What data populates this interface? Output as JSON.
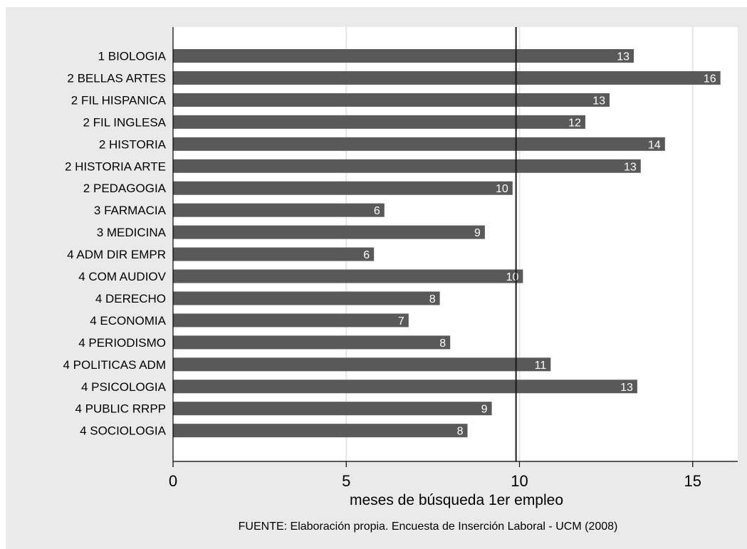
{
  "chart_data": {
    "type": "bar",
    "orientation": "horizontal",
    "categories": [
      "1 BIOLOGIA",
      "2 BELLAS ARTES",
      "2 FIL HISPANICA",
      "2 FIL INGLESA",
      "2 HISTORIA",
      "2 HISTORIA ARTE",
      "2 PEDAGOGIA",
      "3 FARMACIA",
      "3 MEDICINA",
      "4 ADM DIR EMPR",
      "4 COM AUDIOV",
      "4 DERECHO",
      "4 ECONOMIA",
      "4 PERIODISMO",
      "4 POLITICAS ADM",
      "4 PSICOLOGIA",
      "4 PUBLIC RRPP",
      "4 SOCIOLOGIA"
    ],
    "values": [
      13.3,
      15.8,
      12.6,
      11.9,
      14.2,
      13.5,
      9.8,
      6.1,
      9.0,
      5.8,
      10.1,
      7.7,
      6.8,
      8.0,
      10.9,
      13.4,
      9.2,
      8.5
    ],
    "data_labels": [
      "13",
      "16",
      "13",
      "12",
      "14",
      "13",
      "10",
      "6",
      "9",
      "6",
      "10",
      "8",
      "7",
      "8",
      "11",
      "13",
      "9",
      "8"
    ],
    "xlim": [
      0,
      16.3
    ],
    "xticks": [
      0,
      5,
      10,
      15
    ],
    "xtick_labels": [
      "0",
      "5",
      "10",
      "15"
    ],
    "reference_line": 9.9,
    "xlabel": "meses de búsqueda 1er empleo",
    "ylabel": "",
    "title": "",
    "caption": "FUENTE: Elaboración propia. Encuesta de Inserción Laboral - UCM (2008)",
    "grid": true,
    "colors": {
      "bar": "#595959",
      "panel": "#ffffff",
      "background": "#eaeaea",
      "grid": "#e6e6e6",
      "reference_line": "#1a1a1a"
    }
  }
}
